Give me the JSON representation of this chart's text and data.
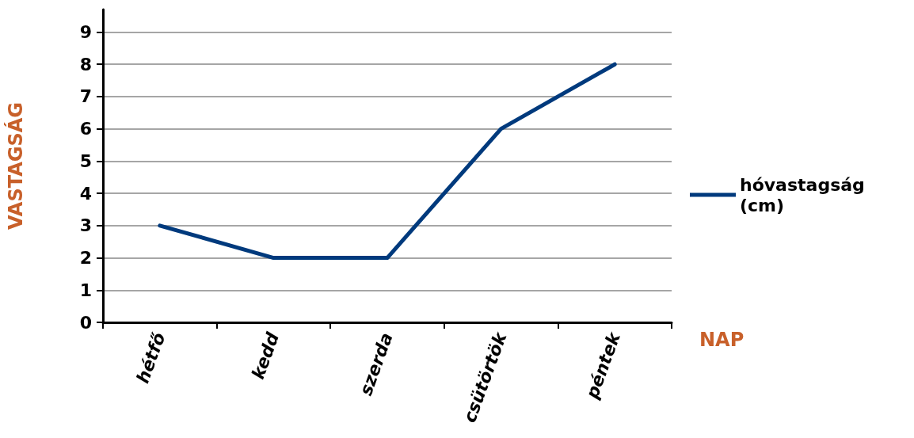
{
  "chart_data": {
    "type": "line",
    "xlabel": "NAP",
    "ylabel": "VASTAGSÁG",
    "categories": [
      "hétfő",
      "kedd",
      "szerda",
      "csütörtök",
      "péntek"
    ],
    "series": [
      {
        "name": "hóvastagság (cm)",
        "color": "#003a7d",
        "values": [
          3,
          2,
          2,
          6,
          8
        ]
      }
    ],
    "ylim": [
      0,
      9.7
    ],
    "yticks": [
      0,
      1,
      2,
      3,
      4,
      5,
      6,
      7,
      8,
      9
    ],
    "grid": "y",
    "legend": "right",
    "marker": "none",
    "line_style": "solid"
  }
}
